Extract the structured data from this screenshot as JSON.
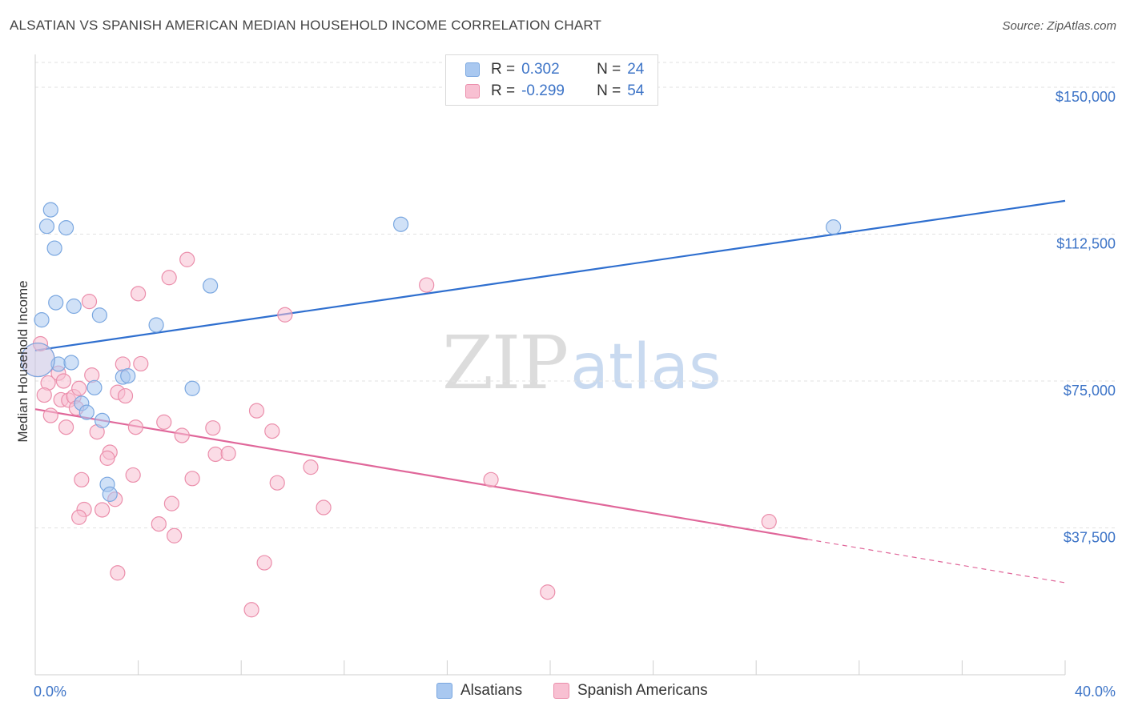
{
  "header": {
    "title": "ALSATIAN VS SPANISH AMERICAN MEDIAN HOUSEHOLD INCOME CORRELATION CHART",
    "source": "Source: ZipAtlas.com"
  },
  "legend": {
    "rows": [
      {
        "r_label": "R =",
        "r_value": "0.302",
        "n_label": "N =",
        "n_value": "24",
        "color": "#a9c8f0",
        "border": "#7aa7e0"
      },
      {
        "r_label": "R =",
        "r_value": "-0.299",
        "n_label": "N =",
        "n_value": "54",
        "color": "#f8c0d2",
        "border": "#eb8eab"
      }
    ]
  },
  "bottom_legend": {
    "items": [
      {
        "label": "Alsatians",
        "color": "#a9c8f0",
        "border": "#7aa7e0"
      },
      {
        "label": "Spanish Americans",
        "color": "#f8c0d2",
        "border": "#eb8eab"
      }
    ]
  },
  "watermark": {
    "zip": "ZIP",
    "atlas": "atlas"
  },
  "chart_data": {
    "type": "scatter",
    "title": "ALSATIAN VS SPANISH AMERICAN MEDIAN HOUSEHOLD INCOME CORRELATION CHART",
    "xlabel": "",
    "ylabel": "Median Household Income",
    "xlim": [
      0,
      40
    ],
    "ylim": [
      0,
      160000
    ],
    "x_tick_labels": [
      "0.0%",
      "40.0%"
    ],
    "y_ticks": [
      37500,
      75000,
      112500,
      150000
    ],
    "y_tick_labels": [
      "$37,500",
      "$75,000",
      "$112,500",
      "$150,000"
    ],
    "grid": true,
    "legend_position": "top-center",
    "series": [
      {
        "name": "Alsatians",
        "color": "#a9c8f0",
        "edge": "#7aa7e0",
        "line_color": "#2f6fcf",
        "trend": {
          "x": [
            0,
            40
          ],
          "y": [
            82800,
            121000
          ],
          "dashed_from": null
        },
        "points": [
          {
            "x": 0.25,
            "y": 90600
          },
          {
            "x": 0.45,
            "y": 114500
          },
          {
            "x": 0.6,
            "y": 118700
          },
          {
            "x": 0.75,
            "y": 108900
          },
          {
            "x": 0.8,
            "y": 95000
          },
          {
            "x": 1.2,
            "y": 114100
          },
          {
            "x": 1.5,
            "y": 94100
          },
          {
            "x": 2.5,
            "y": 91800
          },
          {
            "x": 4.7,
            "y": 89300
          },
          {
            "x": 6.8,
            "y": 99300
          },
          {
            "x": 14.2,
            "y": 115000
          },
          {
            "x": 31.0,
            "y": 114300
          },
          {
            "x": 0.9,
            "y": 79300
          },
          {
            "x": 1.4,
            "y": 79700
          },
          {
            "x": 2.3,
            "y": 73300
          },
          {
            "x": 3.4,
            "y": 76000
          },
          {
            "x": 3.6,
            "y": 76300
          },
          {
            "x": 6.1,
            "y": 73100
          },
          {
            "x": 1.8,
            "y": 69300
          },
          {
            "x": 2.0,
            "y": 67000
          },
          {
            "x": 2.6,
            "y": 64900
          },
          {
            "x": 2.8,
            "y": 48600
          },
          {
            "x": 2.9,
            "y": 46100
          },
          {
            "x": 0.1,
            "y": 80400
          }
        ]
      },
      {
        "name": "Spanish Americans",
        "color": "#f8c0d2",
        "edge": "#eb8eab",
        "line_color": "#e0679a",
        "trend": {
          "x": [
            0,
            40
          ],
          "y": [
            67800,
            23500
          ],
          "dashed_from": 30
        },
        "points": [
          {
            "x": 0.2,
            "y": 84500
          },
          {
            "x": 0.5,
            "y": 74500
          },
          {
            "x": 0.35,
            "y": 71400
          },
          {
            "x": 0.6,
            "y": 66200
          },
          {
            "x": 0.9,
            "y": 77000
          },
          {
            "x": 1.0,
            "y": 70200
          },
          {
            "x": 1.1,
            "y": 75000
          },
          {
            "x": 1.3,
            "y": 70100
          },
          {
            "x": 1.5,
            "y": 71000
          },
          {
            "x": 1.6,
            "y": 68100
          },
          {
            "x": 1.7,
            "y": 73100
          },
          {
            "x": 1.2,
            "y": 63200
          },
          {
            "x": 2.2,
            "y": 76500
          },
          {
            "x": 2.1,
            "y": 95300
          },
          {
            "x": 2.4,
            "y": 62000
          },
          {
            "x": 3.2,
            "y": 72100
          },
          {
            "x": 3.4,
            "y": 79300
          },
          {
            "x": 3.5,
            "y": 71200
          },
          {
            "x": 4.1,
            "y": 79400
          },
          {
            "x": 3.9,
            "y": 63200
          },
          {
            "x": 4.0,
            "y": 97300
          },
          {
            "x": 5.2,
            "y": 101400
          },
          {
            "x": 5.9,
            "y": 106000
          },
          {
            "x": 5.0,
            "y": 64500
          },
          {
            "x": 5.7,
            "y": 61100
          },
          {
            "x": 6.9,
            "y": 63000
          },
          {
            "x": 7.0,
            "y": 56300
          },
          {
            "x": 7.5,
            "y": 56500
          },
          {
            "x": 8.6,
            "y": 67400
          },
          {
            "x": 9.2,
            "y": 62200
          },
          {
            "x": 9.7,
            "y": 91900
          },
          {
            "x": 15.2,
            "y": 99500
          },
          {
            "x": 2.9,
            "y": 56800
          },
          {
            "x": 2.8,
            "y": 55300
          },
          {
            "x": 1.8,
            "y": 49800
          },
          {
            "x": 3.8,
            "y": 51000
          },
          {
            "x": 6.1,
            "y": 50100
          },
          {
            "x": 9.4,
            "y": 49000
          },
          {
            "x": 10.7,
            "y": 53000
          },
          {
            "x": 17.7,
            "y": 49800
          },
          {
            "x": 3.1,
            "y": 44800
          },
          {
            "x": 1.9,
            "y": 42200
          },
          {
            "x": 2.6,
            "y": 42100
          },
          {
            "x": 1.7,
            "y": 40200
          },
          {
            "x": 5.3,
            "y": 43700
          },
          {
            "x": 11.2,
            "y": 42700
          },
          {
            "x": 4.8,
            "y": 38500
          },
          {
            "x": 5.4,
            "y": 35500
          },
          {
            "x": 28.5,
            "y": 39100
          },
          {
            "x": 8.9,
            "y": 28600
          },
          {
            "x": 3.2,
            "y": 26000
          },
          {
            "x": 19.9,
            "y": 21100
          },
          {
            "x": 8.4,
            "y": 16600
          },
          {
            "x": 0.1,
            "y": 80400
          }
        ]
      }
    ]
  }
}
